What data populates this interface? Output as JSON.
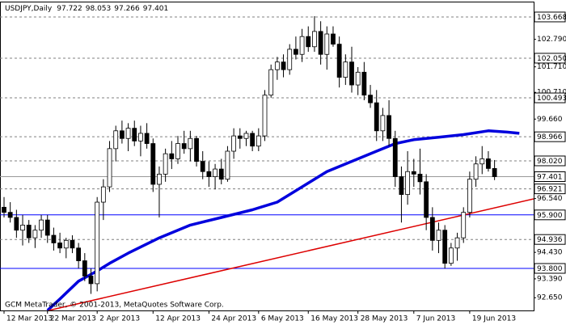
{
  "chart_data": {
    "type": "candlestick",
    "symbol": "USDJPY,Daily",
    "header_values": [
      97.722,
      98.053,
      97.266,
      97.401
    ],
    "footer": "GCM MetaTrader, © 2001-2013, MetaQuotes Software Corp.",
    "xlim": [
      -0.65,
      85.3
    ],
    "ylim": [
      92.15,
      104.27
    ],
    "xticks": [
      {
        "value": 0,
        "label": "12 Mar 2013"
      },
      {
        "value": 7,
        "label": "22 Mar 2013"
      },
      {
        "value": 15,
        "label": "2 Apr 2013"
      },
      {
        "value": 24,
        "label": "12 Apr 2013"
      },
      {
        "value": 33,
        "label": "24 Apr 2013"
      },
      {
        "value": 41,
        "label": "6 May 2013"
      },
      {
        "value": 49,
        "label": "16 May 2013"
      },
      {
        "value": 57,
        "label": "28 May 2013"
      },
      {
        "value": 66,
        "label": "7 Jun 2013"
      },
      {
        "value": 75,
        "label": "19 Jun 2013"
      }
    ],
    "yticks": [
      {
        "value": 102.79,
        "label": "102.790"
      },
      {
        "value": 101.71,
        "label": "101.710"
      },
      {
        "value": 100.71,
        "label": "100.710"
      },
      {
        "value": 99.66,
        "label": "99.660"
      },
      {
        "value": 96.54,
        "label": "96.540"
      },
      {
        "value": 94.43,
        "label": "94.430"
      },
      {
        "value": 93.39,
        "label": "93.390"
      },
      {
        "value": 92.65,
        "label": "92.650"
      }
    ],
    "levels": [
      {
        "value": 103.668,
        "color": "#808080",
        "dashed": true
      },
      {
        "value": 102.05,
        "label": "102.050",
        "color": "#808080",
        "dashed": true
      },
      {
        "value": 100.493,
        "color": "#808080",
        "dashed": true
      },
      {
        "value": 98.966,
        "color": "#808080",
        "dashed": true
      },
      {
        "value": 98.02,
        "label": "98.020",
        "color": "#808080",
        "dashed": true
      },
      {
        "value": 96.921,
        "color": "#808080",
        "dashed": true
      },
      {
        "value": 95.9,
        "label": "95.900",
        "color": "#0000ff",
        "dashed": false
      },
      {
        "value": 94.936,
        "color": "#808080",
        "dashed": true
      },
      {
        "value": 93.8,
        "label": "93.800",
        "color": "#0000ff",
        "dashed": false
      }
    ],
    "current_price": 97.401,
    "open": [
      96.2,
      96.0,
      95.8,
      95.3,
      95.5,
      95.0,
      95.3,
      95.7,
      95.1,
      94.8,
      94.6,
      94.9,
      94.6,
      94.1,
      93.5,
      93.2,
      96.4,
      97.0,
      98.5,
      99.2,
      98.9,
      99.3,
      98.8,
      99.1,
      98.7,
      97.1,
      97.5,
      98.3,
      98.1,
      98.7,
      98.5,
      98.9,
      98.0,
      97.6,
      97.4,
      97.7,
      97.3,
      98.4,
      99.0,
      98.9,
      99.1,
      98.6,
      99.0,
      100.6,
      101.6,
      101.9,
      101.6,
      102.4,
      102.2,
      102.9,
      102.5,
      103.1,
      102.2,
      103.0,
      102.6,
      101.3,
      101.9,
      101.0,
      101.5,
      100.6,
      100.3,
      99.2,
      99.8,
      98.9,
      97.4,
      96.7,
      97.6,
      97.5,
      97.2,
      95.8,
      94.9,
      95.3,
      94.0,
      94.6,
      95.0,
      96.0,
      97.3,
      97.9,
      98.1,
      97.722
    ],
    "high": [
      96.6,
      96.4,
      96.1,
      95.9,
      95.7,
      95.5,
      95.9,
      95.9,
      95.4,
      95.2,
      95.0,
      95.1,
      94.8,
      94.4,
      93.8,
      96.6,
      97.3,
      98.8,
      99.4,
      99.6,
      99.5,
      99.6,
      99.4,
      99.5,
      98.9,
      97.8,
      98.5,
      98.8,
      99.0,
      99.2,
      99.2,
      99.0,
      98.4,
      98.0,
      97.9,
      98.1,
      98.6,
      99.3,
      99.3,
      99.2,
      99.2,
      99.3,
      100.8,
      101.8,
      102.1,
      102.2,
      102.6,
      102.9,
      103.2,
      103.3,
      103.7,
      103.5,
      103.3,
      103.3,
      102.9,
      102.2,
      102.5,
      101.7,
      101.9,
      101.0,
      100.8,
      100.1,
      100.4,
      99.2,
      97.8,
      98.4,
      98.1,
      98.5,
      97.5,
      96.2,
      95.6,
      95.5,
      94.8,
      95.2,
      96.2,
      97.6,
      98.2,
      98.6,
      98.4,
      98.053
    ],
    "low": [
      95.8,
      95.6,
      95.0,
      94.7,
      94.8,
      94.6,
      95.0,
      94.8,
      94.5,
      94.4,
      94.2,
      94.4,
      93.8,
      93.3,
      92.8,
      92.9,
      95.7,
      96.8,
      98.0,
      98.7,
      98.4,
      98.6,
      98.2,
      98.5,
      96.8,
      95.8,
      97.2,
      97.7,
      97.9,
      98.3,
      98.0,
      97.8,
      97.3,
      97.0,
      96.9,
      97.1,
      97.2,
      98.1,
      98.5,
      98.6,
      98.4,
      98.4,
      98.8,
      100.5,
      101.2,
      101.3,
      101.4,
      102.0,
      101.9,
      102.3,
      102.3,
      101.8,
      101.6,
      102.5,
      100.9,
      101.0,
      100.7,
      100.6,
      100.4,
      100.1,
      98.8,
      98.8,
      98.6,
      97.0,
      95.6,
      96.3,
      97.0,
      96.7,
      95.3,
      94.5,
      94.4,
      93.8,
      93.9,
      94.1,
      94.8,
      95.8,
      97.0,
      97.5,
      97.6,
      97.266
    ],
    "close": [
      96.0,
      95.8,
      95.3,
      95.5,
      95.0,
      95.3,
      95.7,
      95.1,
      94.8,
      94.6,
      94.9,
      94.6,
      94.1,
      93.5,
      93.2,
      96.4,
      97.0,
      98.5,
      99.2,
      98.9,
      99.3,
      98.8,
      99.1,
      98.7,
      97.1,
      97.5,
      98.3,
      98.1,
      98.7,
      98.5,
      98.9,
      98.0,
      97.6,
      97.4,
      97.7,
      97.3,
      98.4,
      99.0,
      98.9,
      99.1,
      98.6,
      99.0,
      100.6,
      101.6,
      101.9,
      101.6,
      102.4,
      102.2,
      102.9,
      102.5,
      103.1,
      102.2,
      103.0,
      102.6,
      101.3,
      101.9,
      101.0,
      101.5,
      100.6,
      100.3,
      99.2,
      99.8,
      98.9,
      97.4,
      96.7,
      97.6,
      97.5,
      97.2,
      95.8,
      94.9,
      95.3,
      94.0,
      94.6,
      95.0,
      96.0,
      97.3,
      97.9,
      98.1,
      97.722,
      97.401
    ],
    "bull_color": "#ffffff",
    "bear_color": "#000000",
    "lines": [
      {
        "color": "#0000dd",
        "width": 3.5,
        "x": [
          7,
          9,
          12,
          15,
          17,
          20,
          25,
          30,
          35,
          40,
          44,
          48,
          52,
          56,
          60,
          63,
          66,
          70,
          74,
          78,
          81,
          83
        ],
        "values": [
          92.15,
          92.6,
          93.3,
          93.7,
          94.0,
          94.4,
          95.0,
          95.5,
          95.8,
          96.1,
          96.4,
          97.0,
          97.6,
          98.0,
          98.4,
          98.7,
          98.85,
          98.95,
          99.05,
          99.2,
          99.15,
          99.1
        ]
      },
      {
        "color": "#dd0000",
        "width": 1.5,
        "x": [
          7.2,
          85.3
        ],
        "values": [
          92.15,
          96.53
        ]
      }
    ]
  }
}
